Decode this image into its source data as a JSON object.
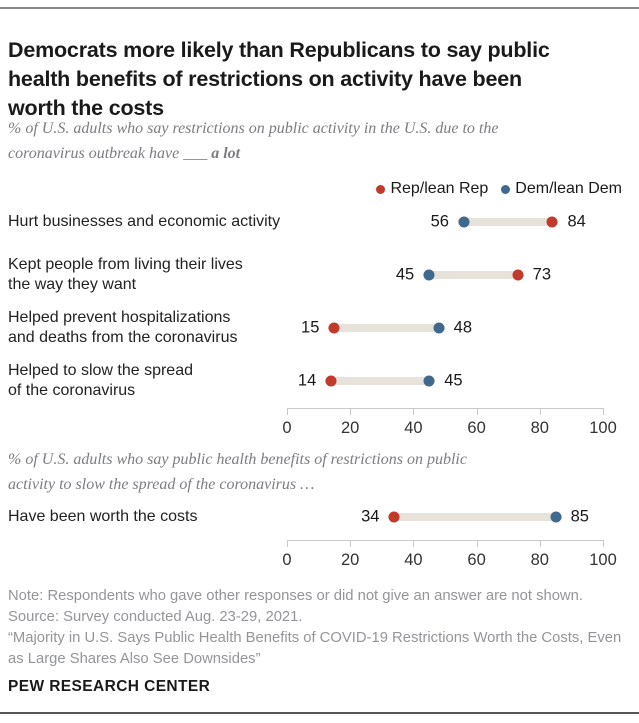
{
  "header": {
    "title": "Democrats more likely than Republicans to say public\nhealth benefits of restrictions on activity have been\nworth the costs",
    "subtitle1_text": "% of U.S. adults who say restrictions on public activity in the U.S. due to the\ncoronavirus outbreak have ___ ",
    "subtitle1_emphasis": "a lot"
  },
  "legend": {
    "rep": "Rep/lean Rep",
    "dem": "Dem/lean Dem"
  },
  "colors": {
    "rep": "#c13a2b",
    "dem": "#3f6a8d",
    "bar": "#e8e3da"
  },
  "section2": {
    "subtitle": "% of U.S. adults who say public health benefits of restrictions on public\nactivity to slow the spread of the coronavirus …"
  },
  "chart_data": [
    {
      "id": "chart1",
      "type": "dot-plot",
      "unit": "% of U.S. adults",
      "series_names": [
        "Rep/lean Rep",
        "Dem/lean Dem"
      ],
      "axis": {
        "min": 0,
        "max": 100,
        "ticks": [
          0,
          20,
          40,
          60,
          80,
          100
        ]
      },
      "rows": [
        {
          "label": "Hurt businesses and economic activity",
          "rep": 84,
          "dem": 56
        },
        {
          "label": "Kept people from living their lives\nthe way they want",
          "rep": 73,
          "dem": 45
        },
        {
          "label": "Helped prevent hospitalizations\nand deaths from the coronavirus",
          "rep": 15,
          "dem": 48
        },
        {
          "label": "Helped to slow the spread\nof the coronavirus",
          "rep": 14,
          "dem": 45
        }
      ]
    },
    {
      "id": "chart2",
      "type": "dot-plot",
      "unit": "% of U.S. adults",
      "series_names": [
        "Rep/lean Rep",
        "Dem/lean Dem"
      ],
      "axis": {
        "min": 0,
        "max": 100,
        "ticks": [
          0,
          20,
          40,
          60,
          80,
          100
        ]
      },
      "rows": [
        {
          "label": "Have been worth the costs",
          "rep": 34,
          "dem": 85
        }
      ]
    }
  ],
  "footer": {
    "note": "Note: Respondents who gave other responses or did not give an answer are not shown.",
    "source": "Source: Survey conducted Aug. 23-29, 2021.",
    "report": "“Majority in U.S. Says Public Health Benefits of COVID-19 Restrictions Worth the Costs, Even as Large Shares Also See Downsides”",
    "brand": "PEW RESEARCH CENTER"
  }
}
